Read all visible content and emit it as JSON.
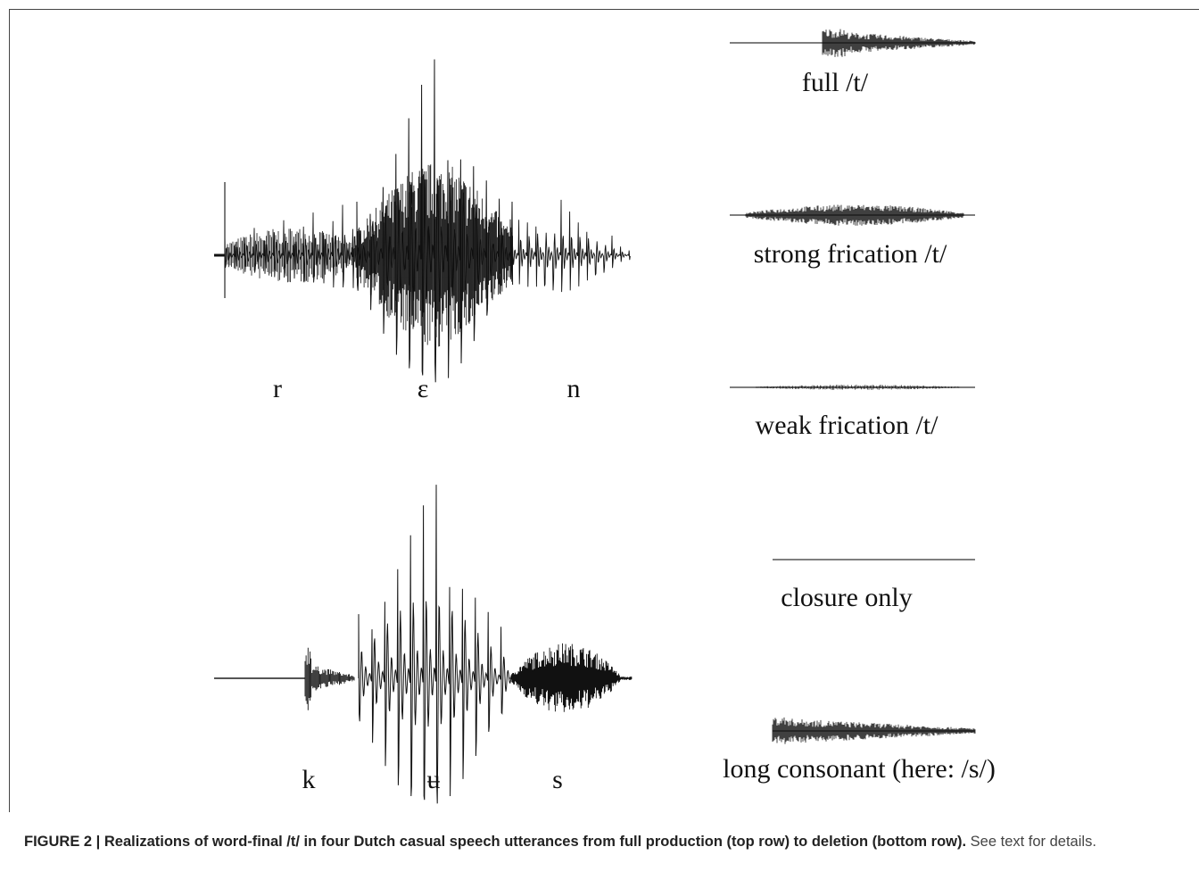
{
  "segments_top": [
    "r",
    "ɛ",
    "n"
  ],
  "segments_bottom": [
    "k",
    "ʉ",
    "s"
  ],
  "waveform_labels": {
    "full": "full /t/",
    "strong": "strong frication /t/",
    "weak": "weak frication /t/",
    "closure": "closure only",
    "long": "long consonant (here: /s/)"
  },
  "caption": {
    "bold": "FIGURE 2 | Realizations of word-final /t/ in four Dutch casual speech utterances from full production (top row) to deletion (bottom row).",
    "rest": " See text for details."
  },
  "colors": {
    "waveform": "#111111",
    "baseline": "#555555"
  }
}
